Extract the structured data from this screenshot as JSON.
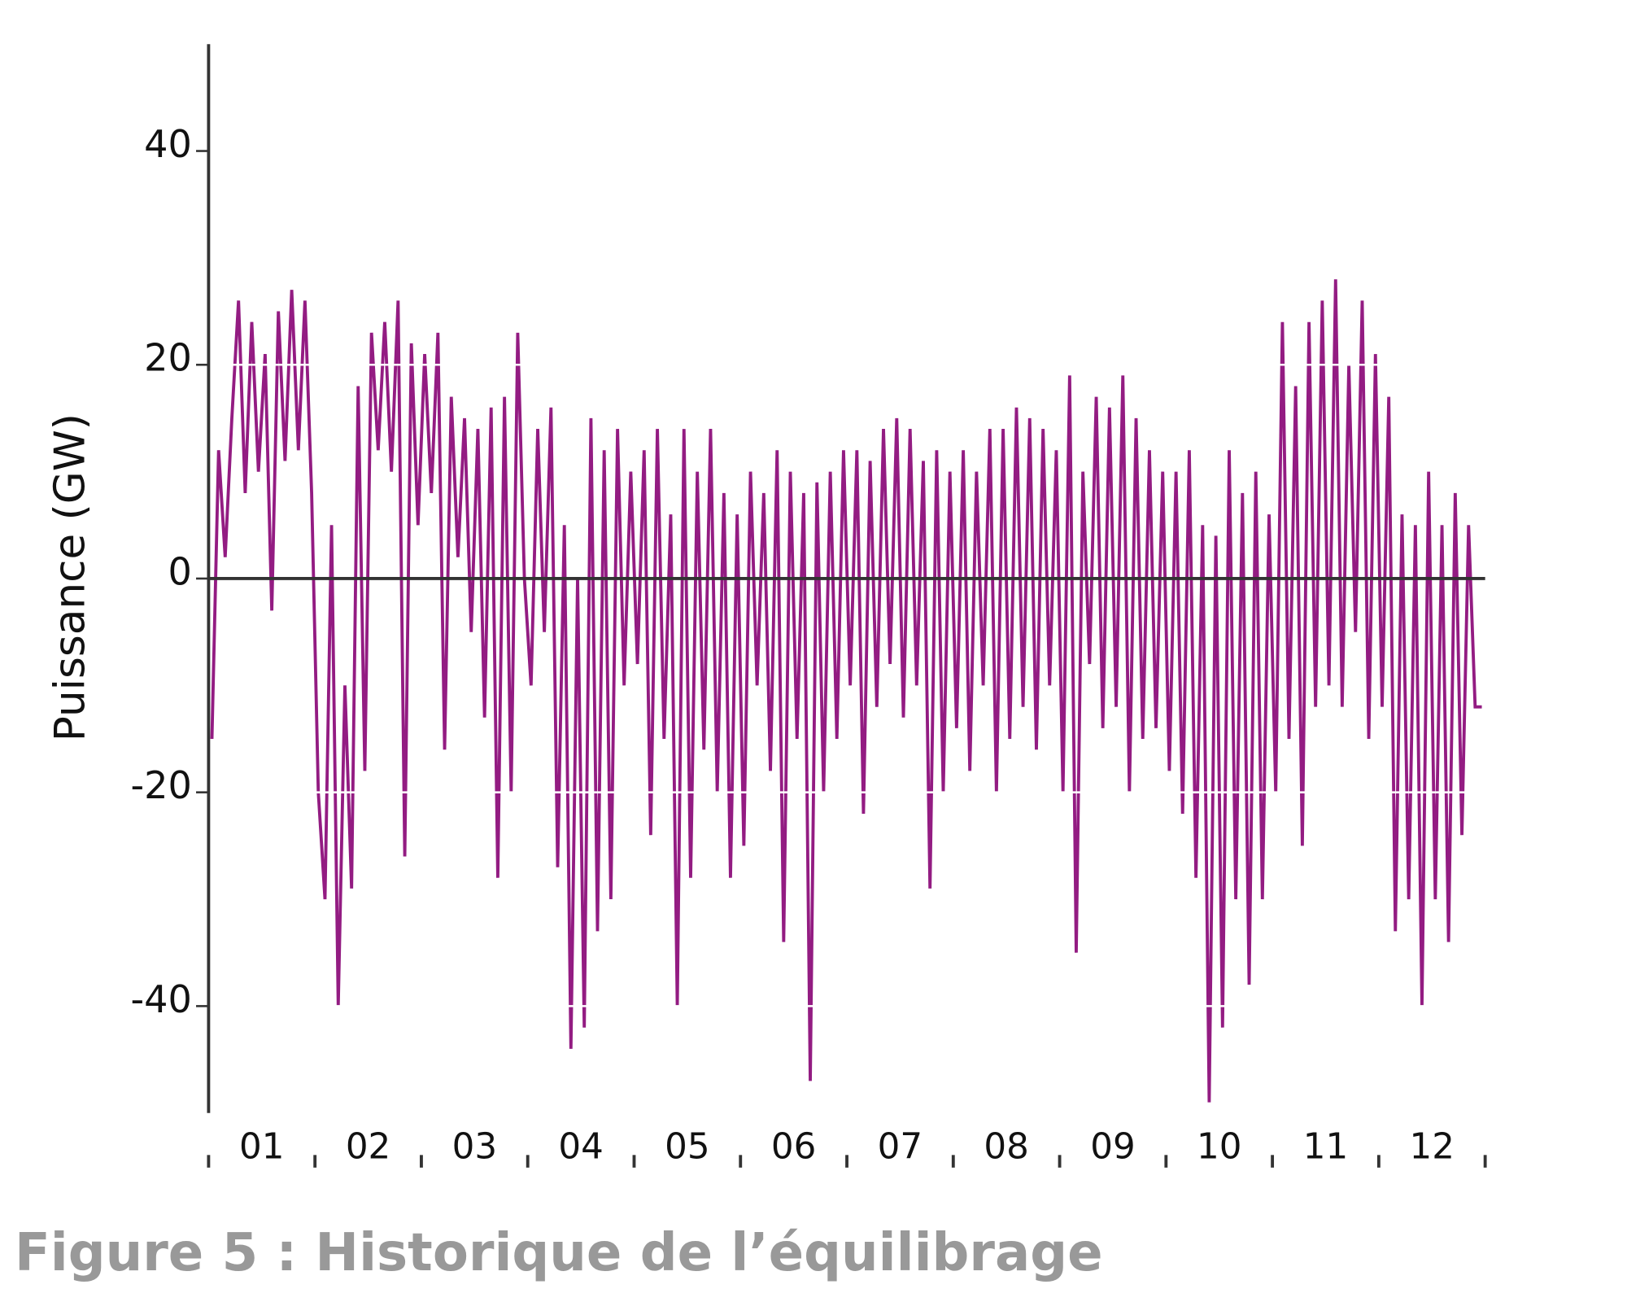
{
  "chart_data": {
    "type": "line",
    "title": "Figure 5 : Historique de l’équilibrage",
    "y_label": "Puissance (GW)",
    "categories": [
      "01",
      "02",
      "03",
      "04",
      "05",
      "06",
      "07",
      "08",
      "09",
      "10",
      "11",
      "12"
    ],
    "values": [
      [
        -15,
        12,
        2,
        15,
        26,
        8,
        24,
        10,
        21,
        -3,
        25,
        11,
        27,
        12,
        26,
        8
      ],
      [
        -20,
        -30,
        5,
        -40,
        -10,
        -29,
        18,
        -18,
        23,
        12,
        24,
        10,
        26,
        -26,
        22,
        5
      ],
      [
        21,
        8,
        23,
        -16,
        17,
        2,
        15,
        -5,
        14,
        -13,
        16,
        -28,
        17,
        -20,
        23,
        0
      ],
      [
        -10,
        14,
        -5,
        16,
        -27,
        5,
        -44,
        0,
        -42,
        15,
        -33,
        12,
        -30,
        14,
        -10,
        10
      ],
      [
        -8,
        12,
        -24,
        14,
        -15,
        6,
        -40,
        14,
        -28,
        10,
        -16,
        14,
        -20,
        8,
        -28,
        6
      ],
      [
        -25,
        10,
        -10,
        8,
        -18,
        12,
        -34,
        10,
        -15,
        8,
        -47,
        9,
        -20,
        10,
        -15,
        12
      ],
      [
        -10,
        12,
        -22,
        11,
        -12,
        14,
        -8,
        15,
        -13,
        14,
        -10,
        11,
        -29,
        12,
        -20,
        10
      ],
      [
        -14,
        12,
        -18,
        10,
        -10,
        14,
        -20,
        14,
        -15,
        16,
        -12,
        15,
        -16,
        14,
        -10,
        12
      ],
      [
        -20,
        19,
        -35,
        10,
        -8,
        17,
        -14,
        16,
        -12,
        19,
        -20,
        15,
        -15,
        12,
        -14,
        10
      ],
      [
        -18,
        10,
        -22,
        12,
        -28,
        5,
        -49,
        4,
        -42,
        12,
        -30,
        8,
        -38,
        10,
        -30,
        6
      ],
      [
        -20,
        24,
        -15,
        18,
        -25,
        24,
        -12,
        26,
        -10,
        28,
        -12,
        20,
        -5,
        26,
        -15,
        21
      ],
      [
        -12,
        17,
        -33,
        6,
        -30,
        5,
        -40,
        10,
        -30,
        5,
        -34,
        8,
        -24,
        5,
        -12,
        -12
      ]
    ],
    "color": "#931c82",
    "ylim": [
      -50,
      50
    ],
    "yticks": [
      -40,
      -20,
      0,
      20,
      40
    ],
    "grid": true
  }
}
